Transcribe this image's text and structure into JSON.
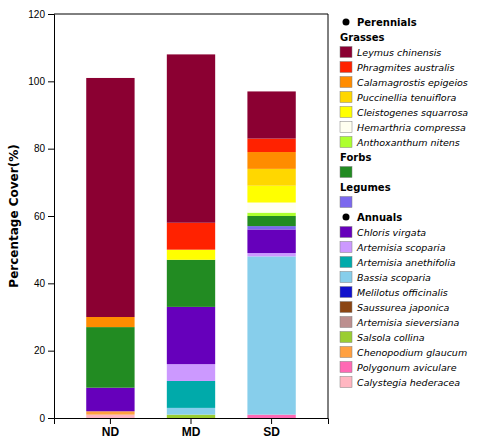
{
  "chart_data": {
    "type": "bar",
    "stacked": true,
    "grid": false,
    "categories": [
      "ND",
      "MD",
      "SD"
    ],
    "ylabel": "Percentage Cover(%)",
    "ylim": [
      0,
      120
    ],
    "yticks": [
      0,
      20,
      40,
      60,
      80,
      100,
      120
    ],
    "series": [
      {
        "name": "Calystegia hederacea",
        "color": "#FFB6C1",
        "values": [
          1,
          0,
          0
        ]
      },
      {
        "name": "Polygonum aviculare",
        "color": "#FF69B4",
        "values": [
          0,
          0,
          1
        ]
      },
      {
        "name": "Chenopodium glaucum",
        "color": "#FFA040",
        "values": [
          1,
          0,
          0
        ]
      },
      {
        "name": "Salsola collina",
        "color": "#9ACD32",
        "values": [
          0,
          1,
          0
        ]
      },
      {
        "name": "Artemisia sieversiana",
        "color": "#BC8F8F",
        "values": [
          0,
          0,
          0
        ]
      },
      {
        "name": "Saussurea japonica",
        "color": "#8B4513",
        "values": [
          0,
          0,
          0
        ]
      },
      {
        "name": "Melilotus officinalis",
        "color": "#1111CC",
        "values": [
          0,
          0,
          0
        ]
      },
      {
        "name": "Bassia scoparia",
        "color": "#87CEEB",
        "values": [
          0,
          2,
          47
        ]
      },
      {
        "name": "Artemisia anethifolia",
        "color": "#00AAAA",
        "values": [
          0,
          8,
          0
        ]
      },
      {
        "name": "Artemisia scoparia",
        "color": "#CC99FF",
        "values": [
          0,
          5,
          1
        ]
      },
      {
        "name": "Chloris virgata",
        "color": "#6600BB",
        "values": [
          7,
          17,
          7
        ]
      },
      {
        "name": "Legumes",
        "color": "#7B68EE",
        "values": [
          0,
          0,
          1
        ]
      },
      {
        "name": "Forbs",
        "color": "#228B22",
        "values": [
          18,
          14,
          3
        ]
      },
      {
        "name": "Anthoxanthum nitens",
        "color": "#ADFF2F",
        "values": [
          0,
          0,
          1
        ]
      },
      {
        "name": "Hemarthria compressa",
        "color": "#FFFFF0",
        "values": [
          0,
          0,
          3
        ]
      },
      {
        "name": "Cleistogenes squarrosa",
        "color": "#FFFF00",
        "values": [
          0,
          3,
          5
        ]
      },
      {
        "name": "Puccinellia tenuiflora",
        "color": "#FFD700",
        "values": [
          0,
          0,
          5
        ]
      },
      {
        "name": "Calamagrostis epigeios",
        "color": "#FF8C00",
        "values": [
          3,
          0,
          5
        ]
      },
      {
        "name": "Phragmites australis",
        "color": "#FF2200",
        "values": [
          0,
          8,
          4
        ]
      },
      {
        "name": "Leymus chinensis",
        "color": "#8B0032",
        "values": [
          71,
          50,
          14
        ]
      }
    ],
    "legend_items": [
      {
        "label": "Perennials",
        "type": "header"
      },
      {
        "label": "Grasses",
        "type": "subheader"
      },
      {
        "label": "Leymus chinensis",
        "color": "#8B0032",
        "type": "patch"
      },
      {
        "label": "Phragmites australis",
        "color": "#FF2200",
        "type": "patch"
      },
      {
        "label": "Calamagrostis epigeios",
        "color": "#FF8C00",
        "type": "patch"
      },
      {
        "label": "Puccinellia tenuiflora",
        "color": "#FFD700",
        "type": "patch"
      },
      {
        "label": "Cleistogenes squarrosa",
        "color": "#FFFF00",
        "type": "patch"
      },
      {
        "label": "Hemarthria compressa",
        "color": "#FFFFF0",
        "type": "patch"
      },
      {
        "label": "Anthoxanthum nitens",
        "color": "#ADFF2F",
        "type": "patch"
      },
      {
        "label": "Forbs",
        "type": "subheader"
      },
      {
        "color": "#228B22",
        "type": "patch"
      },
      {
        "label": "Legumes",
        "type": "subheader"
      },
      {
        "color": "#7B68EE",
        "type": "patch"
      },
      {
        "label": "Annuals",
        "type": "header"
      },
      {
        "label": "Chloris virgata",
        "color": "#6600BB",
        "type": "patch"
      },
      {
        "label": "Artemisia scoparia",
        "color": "#CC99FF",
        "type": "patch"
      },
      {
        "label": "Artemisia anethifolia",
        "color": "#00AAAA",
        "type": "patch"
      },
      {
        "label": "Bassia scoparia",
        "color": "#87CEEB",
        "type": "patch"
      },
      {
        "label": "Melilotus officinalis",
        "color": "#1111CC",
        "type": "patch"
      },
      {
        "label": "Saussurea japonica",
        "color": "#8B4513",
        "type": "patch"
      },
      {
        "label": "Artemisia sieversiana",
        "color": "#BC8F8F",
        "type": "patch"
      },
      {
        "label": "Salsola collina",
        "color": "#9ACD32",
        "type": "patch"
      },
      {
        "label": "Chenopodium glaucum",
        "color": "#FFA040",
        "type": "patch"
      },
      {
        "label": "Polygonum aviculare",
        "color": "#FF69B4",
        "type": "patch"
      },
      {
        "label": "Calystegia hederacea",
        "color": "#FFB6C1",
        "type": "patch"
      }
    ]
  }
}
